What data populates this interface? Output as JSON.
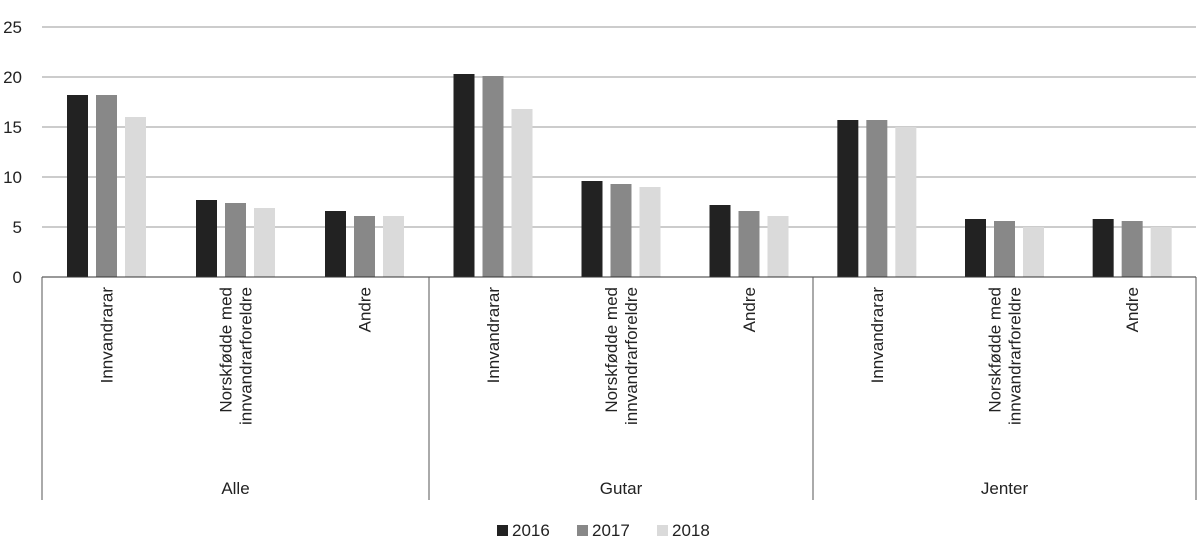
{
  "chart_data": {
    "type": "bar",
    "ylim": [
      0,
      25
    ],
    "yticks": [
      0,
      5,
      10,
      15,
      20,
      25
    ],
    "grid": true,
    "legend_position": "bottom",
    "groups": [
      {
        "label": "Alle",
        "categories": [
          "Innvandrarar",
          "Norskfødde med innvandrarforeldre",
          "Andre"
        ]
      },
      {
        "label": "Gutar",
        "categories": [
          "Innvandrarar",
          "Norskfødde med innvandrarforeldre",
          "Andre"
        ]
      },
      {
        "label": "Jenter",
        "categories": [
          "Innvandrarar",
          "Norskfødde med innvandrarforeldre",
          "Andre"
        ]
      }
    ],
    "series": [
      {
        "name": "2016",
        "color": "#222222",
        "values": [
          18.2,
          7.7,
          6.6,
          20.3,
          9.6,
          7.2,
          15.7,
          5.8,
          5.8
        ]
      },
      {
        "name": "2017",
        "color": "#888888",
        "values": [
          18.2,
          7.4,
          6.1,
          20.1,
          9.3,
          6.6,
          15.7,
          5.6,
          5.6
        ]
      },
      {
        "name": "2018",
        "color": "#dadada",
        "values": [
          16.0,
          6.9,
          6.1,
          16.8,
          9.0,
          6.1,
          15.0,
          5.0,
          5.0
        ]
      }
    ]
  }
}
